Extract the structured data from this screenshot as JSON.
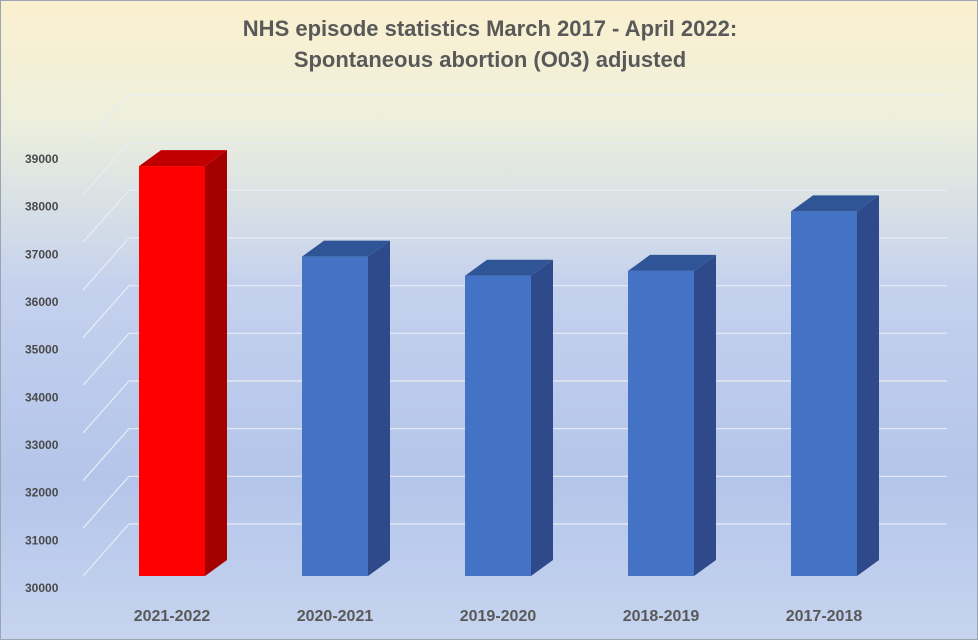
{
  "chart_data": {
    "type": "bar",
    "title": "NHS episode statistics March 2017 - April 2022:",
    "subtitle": "Spontaneous abortion (O03) adjusted",
    "categories": [
      "2021-2022",
      "2020-2021",
      "2019-2020",
      "2018-2019",
      "2017-2018"
    ],
    "values": [
      38600,
      36700,
      36300,
      36400,
      37650
    ],
    "ylim": [
      30000,
      39000
    ],
    "yticks": [
      30000,
      31000,
      32000,
      33000,
      34000,
      35000,
      36000,
      37000,
      38000,
      39000
    ],
    "grid": true,
    "highlight_index": 0,
    "colors": {
      "highlight_front": "#ff0000",
      "highlight_side": "#a50000",
      "highlight_top": "#c00000",
      "bar_front": "#4472c4",
      "bar_side": "#2e4a8a",
      "bar_top": "#2f5597",
      "grid": "#e8ecf5"
    }
  }
}
